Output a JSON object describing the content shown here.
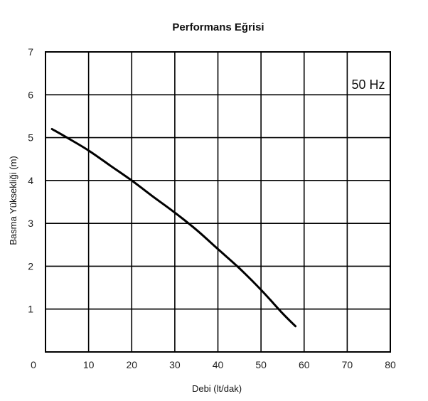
{
  "chart_data": {
    "type": "line",
    "title": "Performans Eğrisi",
    "xlabel": "Debi (lt/dak)",
    "ylabel": "Basma Yüksekliği (m)",
    "annotation": "50 Hz",
    "xlim": [
      0,
      80
    ],
    "ylim": [
      0,
      7
    ],
    "x_ticks": [
      "0",
      "10",
      "20",
      "30",
      "40",
      "50",
      "60",
      "70",
      "80"
    ],
    "y_ticks": [
      "1",
      "2",
      "3",
      "4",
      "5",
      "6",
      "7"
    ],
    "grid": true,
    "series": [
      {
        "x": [
          1.5,
          5,
          10,
          15,
          20,
          25,
          30,
          35,
          40,
          45,
          50,
          55,
          58
        ],
        "y": [
          5.2,
          5.0,
          4.7,
          4.35,
          4.0,
          3.62,
          3.25,
          2.85,
          2.4,
          1.95,
          1.45,
          0.9,
          0.6
        ]
      }
    ]
  }
}
